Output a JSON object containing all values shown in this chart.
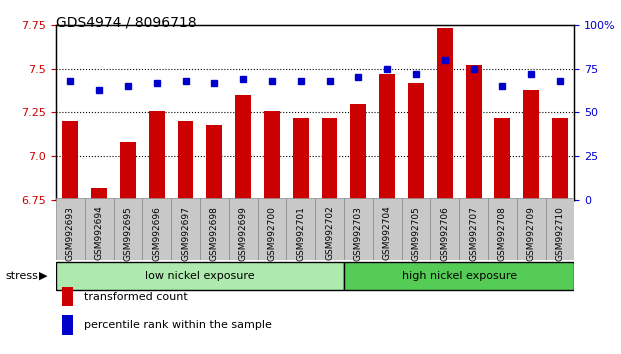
{
  "title": "GDS4974 / 8096718",
  "samples": [
    "GSM992693",
    "GSM992694",
    "GSM992695",
    "GSM992696",
    "GSM992697",
    "GSM992698",
    "GSM992699",
    "GSM992700",
    "GSM992701",
    "GSM992702",
    "GSM992703",
    "GSM992704",
    "GSM992705",
    "GSM992706",
    "GSM992707",
    "GSM992708",
    "GSM992709",
    "GSM992710"
  ],
  "transformed_count": [
    7.2,
    6.82,
    7.08,
    7.26,
    7.2,
    7.18,
    7.35,
    7.26,
    7.22,
    7.22,
    7.3,
    7.47,
    7.42,
    7.73,
    7.52,
    7.22,
    7.38,
    7.22
  ],
  "percentile_rank": [
    68,
    63,
    65,
    67,
    68,
    67,
    69,
    68,
    68,
    68,
    70,
    75,
    72,
    80,
    75,
    65,
    72,
    68
  ],
  "bar_color": "#cc0000",
  "dot_color": "#0000cc",
  "ylim_left": [
    6.75,
    7.75
  ],
  "ylim_right": [
    0,
    100
  ],
  "yticks_left": [
    6.75,
    7.0,
    7.25,
    7.5,
    7.75
  ],
  "yticks_right": [
    0,
    25,
    50,
    75,
    100
  ],
  "ytick_labels_right": [
    "0",
    "25",
    "50",
    "75",
    "100%"
  ],
  "grid_lines": [
    7.0,
    7.25,
    7.5
  ],
  "low_nickel_count": 10,
  "high_nickel_count": 8,
  "low_nickel_label": "low nickel exposure",
  "high_nickel_label": "high nickel exposure",
  "stress_label": "stress",
  "legend_bar_label": "transformed count",
  "legend_dot_label": "percentile rank within the sample",
  "bar_baseline": 6.75,
  "group_color_low": "#aeeaae",
  "group_color_high": "#55cc55",
  "xticklabel_bg": "#c8c8c8"
}
